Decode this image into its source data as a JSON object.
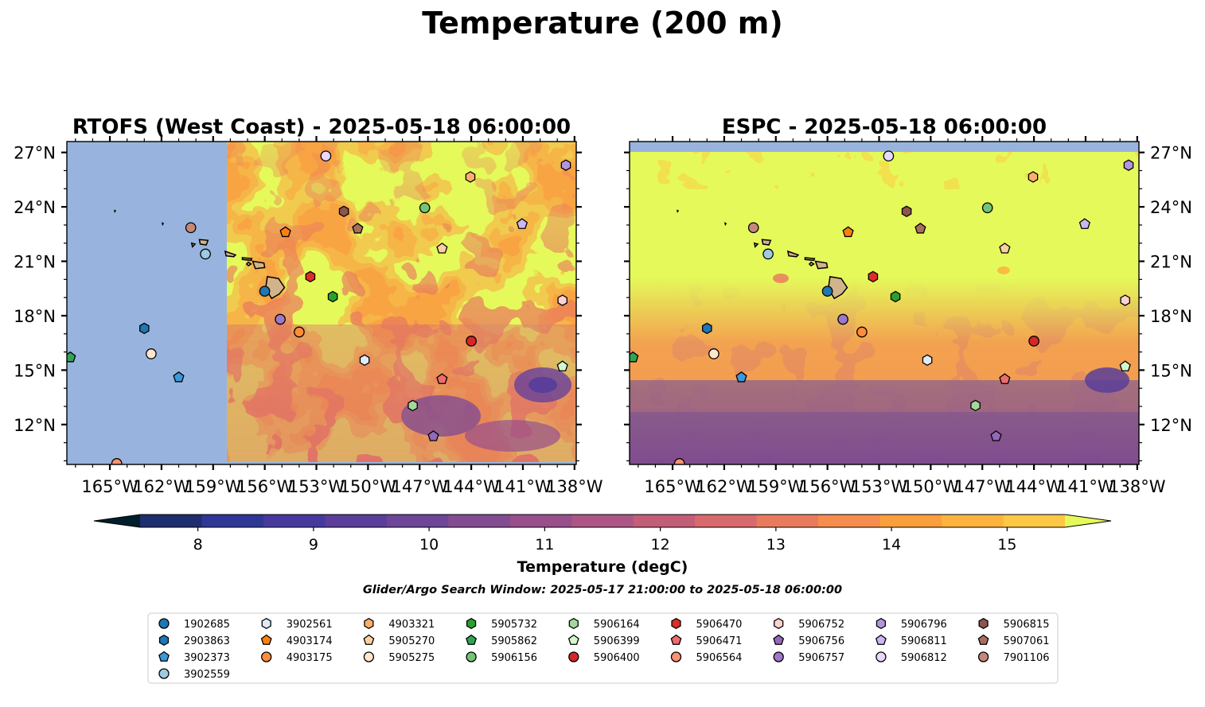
{
  "figure": {
    "title": "Temperature (200 m)",
    "search_window": "Glider/Argo Search Window: 2025-05-17 21:00:00 to 2025-05-18 06:00:00"
  },
  "panels": [
    {
      "title": "RTOFS (West Coast) - 2025-05-18 06:00:00",
      "model_coverage_west_of": "-157.9"
    },
    {
      "title": "ESPC - 2025-05-18 06:00:00",
      "model_coverage_north_of": "27.1"
    }
  ],
  "colors": {
    "land": "#d2b48c",
    "nodata": "#98b4de",
    "palette": [
      "#001f2c",
      "#112143",
      "#1e2d6e",
      "#2e3795",
      "#46399e",
      "#5a3e99",
      "#6e4597",
      "#834c91",
      "#984f8b",
      "#ad5685",
      "#c35e78",
      "#d86a6d",
      "#e97b5d",
      "#f68d4e",
      "#fb9f3d",
      "#fdb33d",
      "#fdc844",
      "#f6df4f",
      "#e5fa5a"
    ]
  },
  "chart_data": {
    "type": "heatmap",
    "variable": "Temperature",
    "depth": "200 m",
    "xlim": [
      -167.5,
      -137.9
    ],
    "ylim": [
      9.8,
      27.6
    ],
    "xticks": [
      -165,
      -162,
      -159,
      -156,
      -153,
      -150,
      -147,
      -144,
      -141,
      -138
    ],
    "xtick_labels": [
      "165°W",
      "162°W",
      "159°W",
      "156°W",
      "153°W",
      "150°W",
      "147°W",
      "144°W",
      "141°W",
      "138°W"
    ],
    "yticks": [
      12,
      15,
      18,
      21,
      24,
      27
    ],
    "ytick_labels": [
      "12°N",
      "15°N",
      "18°N",
      "21°N",
      "24°N",
      "27°N"
    ],
    "colorbar": {
      "label": "Temperature (degC)",
      "vmin": 7.5,
      "vmax": 15.5,
      "ticks": [
        8,
        9,
        10,
        11,
        12,
        13,
        14,
        15
      ],
      "tick_labels": [
        "8",
        "9",
        "10",
        "11",
        "12",
        "13",
        "14",
        "15"
      ],
      "extend": "both"
    },
    "floats": [
      {
        "id": "1902685",
        "marker": "circle",
        "color": "#1f77b4",
        "lon": -156.0,
        "lat": 19.35
      },
      {
        "id": "2903863",
        "marker": "hexagon",
        "color": "#1f77b4",
        "lon": -163.0,
        "lat": 17.3
      },
      {
        "id": "3902373",
        "marker": "pentagon",
        "color": "#3a9ad9",
        "lon": -161.0,
        "lat": 14.6
      },
      {
        "id": "3902559",
        "marker": "circle",
        "color": "#9ecae1",
        "lon": -159.45,
        "lat": 21.4
      },
      {
        "id": "3902561",
        "marker": "hexagon",
        "color": "#deebf7",
        "lon": -150.2,
        "lat": 15.55
      },
      {
        "id": "4903174",
        "marker": "pentagon",
        "color": "#ff7f0e",
        "lon": -154.8,
        "lat": 22.6
      },
      {
        "id": "4903175",
        "marker": "circle",
        "color": "#fd8d3c",
        "lon": -154.0,
        "lat": 17.1
      },
      {
        "id": "4903321",
        "marker": "hexagon",
        "color": "#fdae6b",
        "lon": -144.05,
        "lat": 25.65
      },
      {
        "id": "5905270",
        "marker": "pentagon",
        "color": "#fdd0a2",
        "lon": -145.7,
        "lat": 21.7
      },
      {
        "id": "5905275",
        "marker": "circle",
        "color": "#fee6ce",
        "lon": -162.6,
        "lat": 15.9
      },
      {
        "id": "5905732",
        "marker": "hexagon",
        "color": "#2ca02c",
        "lon": -152.05,
        "lat": 19.05
      },
      {
        "id": "5905862",
        "marker": "pentagon",
        "color": "#31a354",
        "lon": -167.3,
        "lat": 15.7
      },
      {
        "id": "5906156",
        "marker": "circle",
        "color": "#74c476",
        "lon": -146.7,
        "lat": 23.95
      },
      {
        "id": "5906164",
        "marker": "hexagon",
        "color": "#a1d99b",
        "lon": -147.4,
        "lat": 13.05
      },
      {
        "id": "5906399",
        "marker": "pentagon",
        "color": "#d4f6cc",
        "lon": -138.7,
        "lat": 15.2
      },
      {
        "id": "5906400",
        "marker": "circle",
        "color": "#d62728",
        "lon": -144.0,
        "lat": 16.6
      },
      {
        "id": "5906470",
        "marker": "hexagon",
        "color": "#de2d26",
        "lon": -153.35,
        "lat": 20.15
      },
      {
        "id": "5906471",
        "marker": "pentagon",
        "color": "#ee6c6c",
        "lon": -145.7,
        "lat": 14.5
      },
      {
        "id": "5906564",
        "marker": "circle",
        "color": "#fc9272",
        "lon": -164.6,
        "lat": 9.85
      },
      {
        "id": "5906752",
        "marker": "hexagon",
        "color": "#fcd1d1",
        "lon": -138.7,
        "lat": 18.85
      },
      {
        "id": "5906756",
        "marker": "pentagon",
        "color": "#9467bd",
        "lon": -146.2,
        "lat": 11.35
      },
      {
        "id": "5906757",
        "marker": "circle",
        "color": "#9e77c9",
        "lon": -155.1,
        "lat": 17.8
      },
      {
        "id": "5906796",
        "marker": "hexagon",
        "color": "#b494dd",
        "lon": -138.5,
        "lat": 26.3
      },
      {
        "id": "5906811",
        "marker": "pentagon",
        "color": "#cdb6f4",
        "lon": -141.05,
        "lat": 23.05
      },
      {
        "id": "5906812",
        "marker": "circle",
        "color": "#e8d8fb",
        "lon": -152.45,
        "lat": 26.8
      },
      {
        "id": "5906815",
        "marker": "hexagon",
        "color": "#8c564b",
        "lon": -151.4,
        "lat": 23.75
      },
      {
        "id": "5907061",
        "marker": "pentagon",
        "color": "#a86f5c",
        "lon": -150.6,
        "lat": 22.8
      },
      {
        "id": "7901106",
        "marker": "circle",
        "color": "#c4897a",
        "lon": -160.3,
        "lat": 22.85
      }
    ],
    "legend_order": [
      "1902685",
      "2903863",
      "3902373",
      "3902559",
      "3902561",
      "4903174",
      "4903175",
      "4903321",
      "5905270",
      "5905275",
      "5905732",
      "5905862",
      "5906156",
      "5906164",
      "5906399",
      "5906400",
      "5906470",
      "5906471",
      "5906564",
      "5906752",
      "5906756",
      "5906757",
      "5906796",
      "5906811",
      "5906812",
      "5906815",
      "5907061",
      "7901106"
    ],
    "legend_columns": [
      4,
      3,
      3,
      3,
      3,
      3,
      3,
      3,
      3
    ],
    "legend_placement": "bottom-center"
  }
}
